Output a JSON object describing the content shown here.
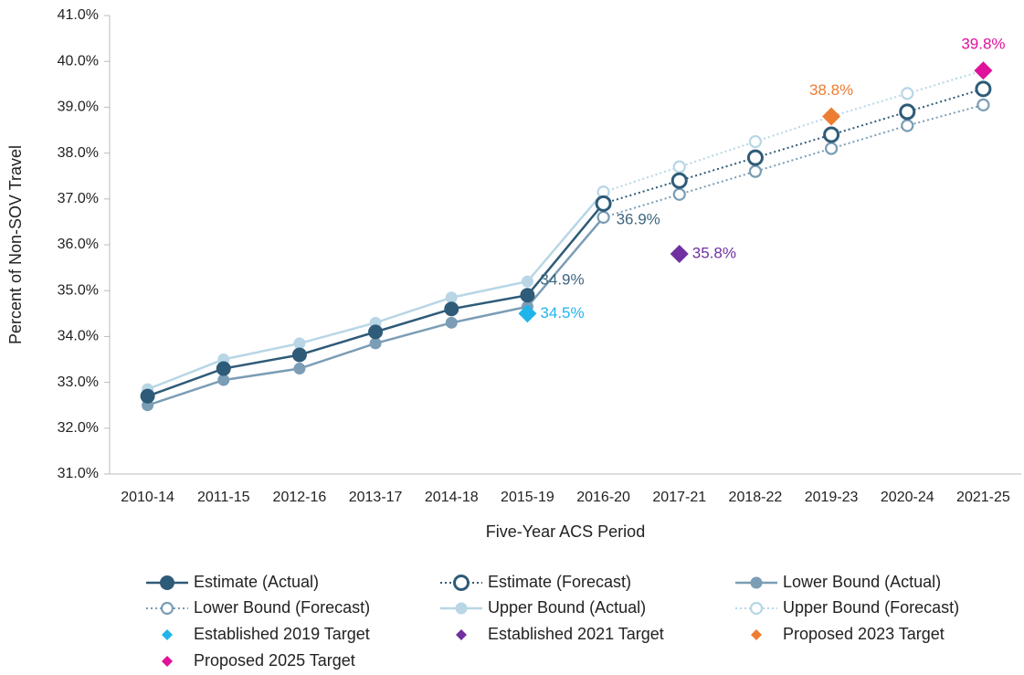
{
  "chart_data": {
    "type": "line",
    "y_axis_label": "Percent of Non-SOV Travel",
    "x_axis_label": "Five-Year ACS Period",
    "categories": [
      "2010-14",
      "2011-15",
      "2012-16",
      "2013-17",
      "2014-18",
      "2015-19",
      "2016-20",
      "2017-21",
      "2018-22",
      "2019-23",
      "2020-24",
      "2021-25"
    ],
    "ylim": [
      31,
      41
    ],
    "yticks": [
      {
        "value": 31,
        "label": "31.0%"
      },
      {
        "value": 32,
        "label": "32.0%"
      },
      {
        "value": 33,
        "label": "33.0%"
      },
      {
        "value": 34,
        "label": "34.0%"
      },
      {
        "value": 35,
        "label": "35.0%"
      },
      {
        "value": 36,
        "label": "36.0%"
      },
      {
        "value": 37,
        "label": "37.0%"
      },
      {
        "value": 38,
        "label": "38.0%"
      },
      {
        "value": 39,
        "label": "39.0%"
      },
      {
        "value": 40,
        "label": "40.0%"
      },
      {
        "value": 41,
        "label": "41.0%"
      }
    ],
    "grid": false,
    "legend": "bottom",
    "series": [
      {
        "name": "Estimate (Actual)",
        "color": "#2e5b78",
        "line": "solid",
        "marker": "circle",
        "values": [
          32.7,
          33.3,
          33.6,
          34.1,
          34.6,
          34.9,
          36.9,
          null,
          null,
          null,
          null,
          null
        ],
        "value_labels": [
          null,
          null,
          null,
          null,
          null,
          "34.9%",
          "36.9%",
          null,
          null,
          null,
          null,
          null
        ]
      },
      {
        "name": "Estimate (Forecast)",
        "color": "#2e5b78",
        "line": "dotted",
        "marker": "ring",
        "values": [
          null,
          null,
          null,
          null,
          null,
          null,
          36.9,
          37.4,
          37.9,
          38.4,
          38.9,
          39.4
        ]
      },
      {
        "name": "Lower Bound (Actual)",
        "color": "#7b9db5",
        "line": "solid",
        "marker": "circle",
        "values": [
          32.5,
          33.05,
          33.3,
          33.85,
          34.3,
          34.65,
          36.6,
          null,
          null,
          null,
          null,
          null
        ]
      },
      {
        "name": "Lower Bound (Forecast)",
        "color": "#7b9db5",
        "line": "dotted",
        "marker": "ring",
        "values": [
          null,
          null,
          null,
          null,
          null,
          null,
          36.6,
          37.1,
          37.6,
          38.1,
          38.6,
          39.05
        ]
      },
      {
        "name": "Upper Bound (Actual)",
        "color": "#b8d6e6",
        "line": "solid",
        "marker": "circle",
        "values": [
          32.85,
          33.5,
          33.85,
          34.3,
          34.85,
          35.2,
          37.15,
          null,
          null,
          null,
          null,
          null
        ]
      },
      {
        "name": "Upper Bound (Forecast)",
        "color": "#b8d6e6",
        "line": "dotted",
        "marker": "ring",
        "values": [
          null,
          null,
          null,
          null,
          null,
          null,
          37.15,
          37.7,
          38.25,
          38.8,
          39.3,
          39.8
        ]
      },
      {
        "name": "Established 2019 Target",
        "color": "#1fb5ea",
        "line": "none",
        "marker": "diamond",
        "values": [
          null,
          null,
          null,
          null,
          null,
          34.5,
          null,
          null,
          null,
          null,
          null,
          null
        ],
        "value_labels": [
          null,
          null,
          null,
          null,
          null,
          "34.5%",
          null,
          null,
          null,
          null,
          null,
          null
        ]
      },
      {
        "name": "Established 2021 Target",
        "color": "#7030a0",
        "line": "none",
        "marker": "diamond",
        "values": [
          null,
          null,
          null,
          null,
          null,
          null,
          null,
          35.8,
          null,
          null,
          null,
          null
        ],
        "value_labels": [
          null,
          null,
          null,
          null,
          null,
          null,
          null,
          "35.8%",
          null,
          null,
          null,
          null
        ]
      },
      {
        "name": "Proposed 2023 Target",
        "color": "#ed7d31",
        "line": "none",
        "marker": "diamond",
        "values": [
          null,
          null,
          null,
          null,
          null,
          null,
          null,
          null,
          null,
          38.8,
          null,
          null
        ],
        "value_labels": [
          null,
          null,
          null,
          null,
          null,
          null,
          null,
          null,
          null,
          "38.8%",
          null,
          null
        ]
      },
      {
        "name": "Proposed 2025 Target",
        "color": "#e0119b",
        "line": "none",
        "marker": "diamond",
        "values": [
          null,
          null,
          null,
          null,
          null,
          null,
          null,
          null,
          null,
          null,
          null,
          39.8
        ],
        "value_labels": [
          null,
          null,
          null,
          null,
          null,
          null,
          null,
          null,
          null,
          null,
          null,
          "39.8%"
        ]
      }
    ]
  }
}
